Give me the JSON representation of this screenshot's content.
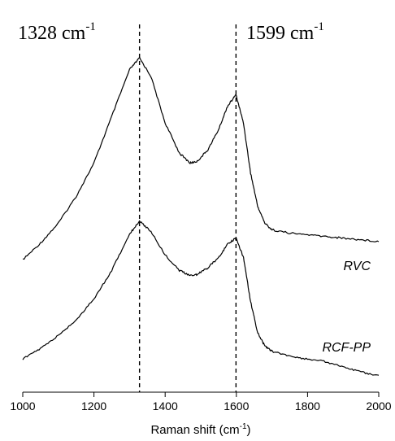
{
  "chart_data": {
    "type": "line",
    "title": "",
    "xlabel": "Raman shift (cm",
    "xlabel_sup": "-1",
    "xlabel_suffix": ")",
    "ylabel": "",
    "xlim": [
      1000,
      2000
    ],
    "ylim": [
      0,
      1
    ],
    "x_ticks": [
      1000,
      1200,
      1400,
      1600,
      1800,
      2000
    ],
    "grid": false,
    "y_axis_visible": false,
    "annotations": [
      {
        "text": "1328 cm",
        "sup": "-1",
        "x": 1328,
        "style": "dashed-vertical-line"
      },
      {
        "text": "1599 cm",
        "sup": "-1",
        "x": 1599,
        "style": "dashed-vertical-line"
      }
    ],
    "series": [
      {
        "name": "RVC",
        "x": [
          1000,
          1050,
          1100,
          1150,
          1200,
          1250,
          1300,
          1328,
          1360,
          1400,
          1440,
          1470,
          1490,
          1520,
          1550,
          1575,
          1599,
          1620,
          1640,
          1660,
          1680,
          1700,
          1750,
          1800,
          1850,
          1900,
          1950,
          2000
        ],
        "y": [
          0.27,
          0.32,
          0.38,
          0.46,
          0.56,
          0.7,
          0.84,
          0.875,
          0.82,
          0.68,
          0.59,
          0.56,
          0.565,
          0.6,
          0.66,
          0.73,
          0.765,
          0.68,
          0.53,
          0.43,
          0.38,
          0.36,
          0.35,
          0.345,
          0.34,
          0.335,
          0.33,
          0.325
        ]
      },
      {
        "name": "RCF-PP",
        "x": [
          1000,
          1050,
          1100,
          1150,
          1200,
          1250,
          1300,
          1328,
          1360,
          1400,
          1440,
          1470,
          1490,
          1520,
          1550,
          1575,
          1599,
          1620,
          1640,
          1660,
          1680,
          1700,
          1750,
          1800,
          1850,
          1900,
          1950,
          2000
        ],
        "y": [
          0.09,
          0.13,
          0.18,
          0.24,
          0.32,
          0.43,
          0.57,
          0.62,
          0.58,
          0.49,
          0.43,
          0.41,
          0.415,
          0.44,
          0.48,
          0.53,
          0.555,
          0.48,
          0.31,
          0.19,
          0.14,
          0.12,
          0.1,
          0.09,
          0.08,
          0.06,
          0.04,
          0.025
        ]
      }
    ]
  }
}
